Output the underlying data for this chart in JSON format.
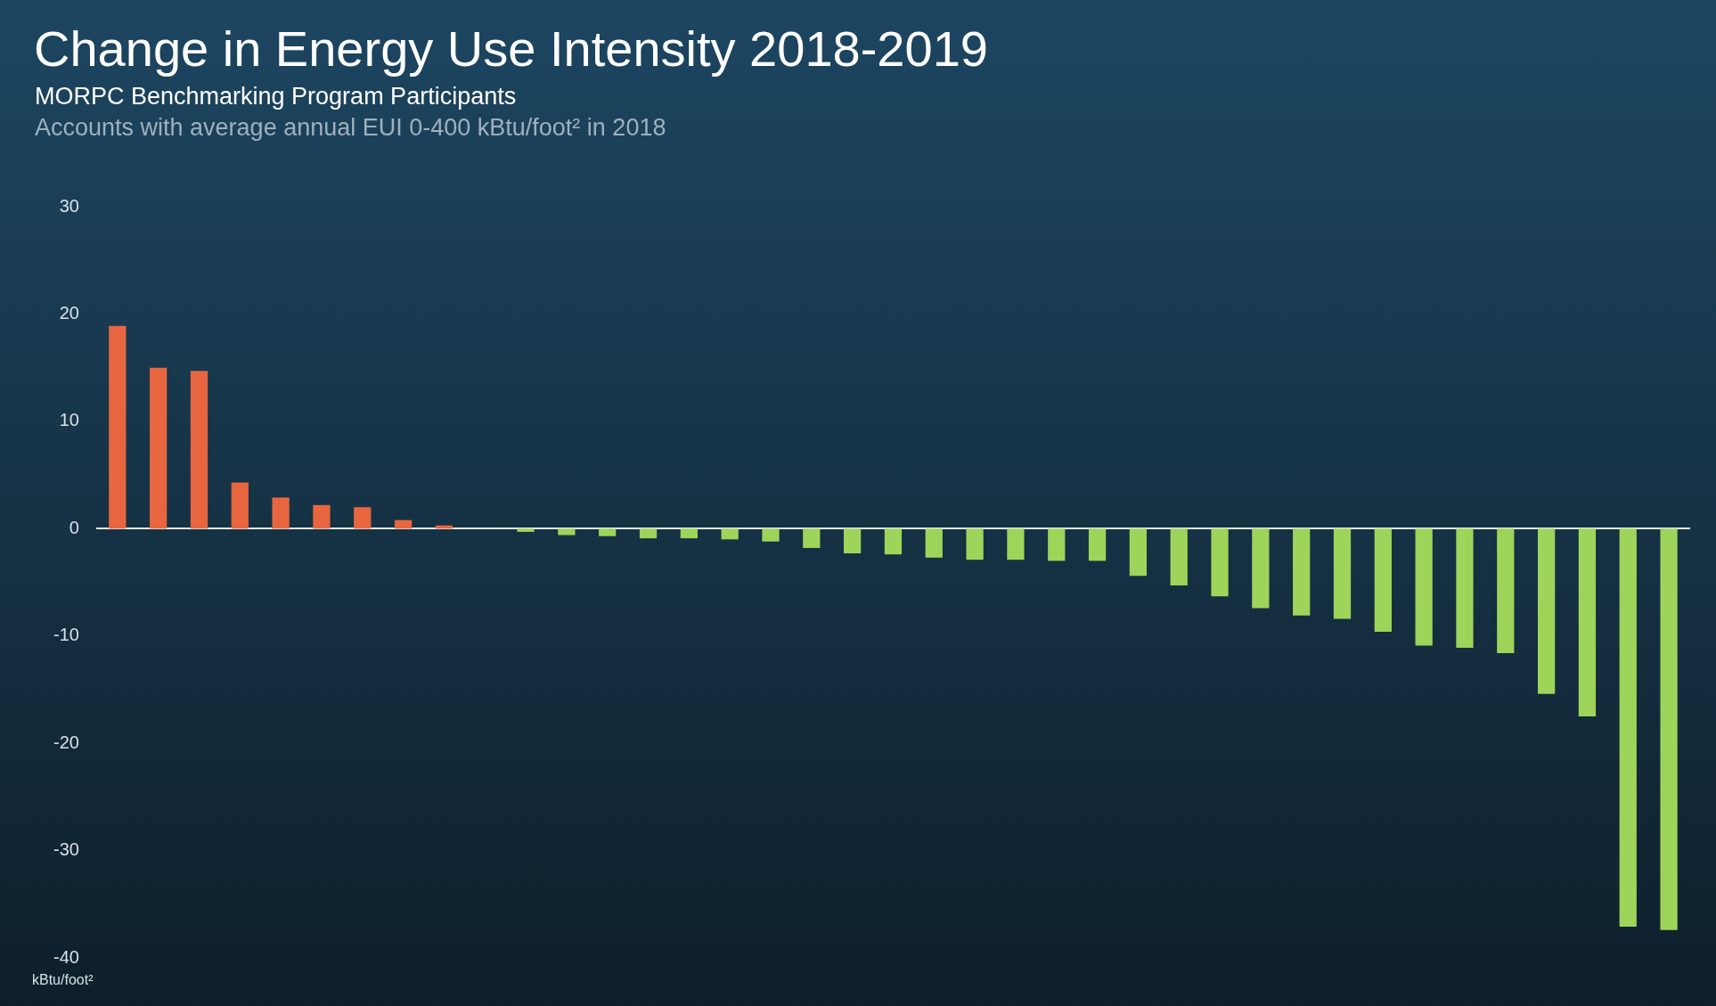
{
  "chart_data": {
    "type": "bar",
    "title": "Change in Energy Use Intensity 2018-2019",
    "subtitle": "MORPC Benchmarking Program Participants",
    "annotations": [
      "Accounts with average annual EUI 0-400 kBtu/foot² in 2018"
    ],
    "ylabel": "kBtu/foot²",
    "categories": [
      null,
      null,
      null,
      null,
      null,
      null,
      null,
      null,
      null,
      null,
      null,
      null,
      null,
      null,
      null,
      null,
      null,
      null,
      null,
      null,
      null,
      null,
      null,
      null,
      null,
      null,
      null,
      null,
      null,
      null,
      null,
      null,
      null,
      null,
      null,
      null,
      null,
      null,
      null
    ],
    "values": [
      18.9,
      15.0,
      14.7,
      4.3,
      2.9,
      2.2,
      2.0,
      0.8,
      0.3,
      0,
      -0.3,
      -0.6,
      -0.7,
      -0.9,
      -0.9,
      -1.0,
      -1.2,
      -1.8,
      -2.3,
      -2.4,
      -2.7,
      -2.9,
      -2.9,
      -3.0,
      -3.0,
      -4.4,
      -5.3,
      -6.3,
      -7.4,
      -8.1,
      -8.4,
      -9.6,
      -10.9,
      -11.1,
      -11.6,
      -15.4,
      -17.5,
      -37.1,
      -37.4
    ],
    "colors": [
      "#e8663f",
      "#e8663f",
      "#e8663f",
      "#e8663f",
      "#e8663f",
      "#e8663f",
      "#e8663f",
      "#e8663f",
      "#e8663f",
      "#9ed45a",
      "#9ed45a",
      "#9ed45a",
      "#9ed45a",
      "#9ed45a",
      "#9ed45a",
      "#9ed45a",
      "#9ed45a",
      "#9ed45a",
      "#9ed45a",
      "#9ed45a",
      "#9ed45a",
      "#9ed45a",
      "#9ed45a",
      "#9ed45a",
      "#9ed45a",
      "#9ed45a",
      "#9ed45a",
      "#9ed45a",
      "#9ed45a",
      "#9ed45a",
      "#9ed45a",
      "#9ed45a",
      "#9ed45a",
      "#9ed45a",
      "#9ed45a",
      "#9ed45a",
      "#9ed45a",
      "#9ed45a",
      "#9ed45a"
    ],
    "ylim": [
      -40,
      30
    ],
    "yticks": [
      -40,
      -30,
      -20,
      -10,
      0,
      10,
      20,
      30
    ],
    "tick_labels": "y"
  }
}
